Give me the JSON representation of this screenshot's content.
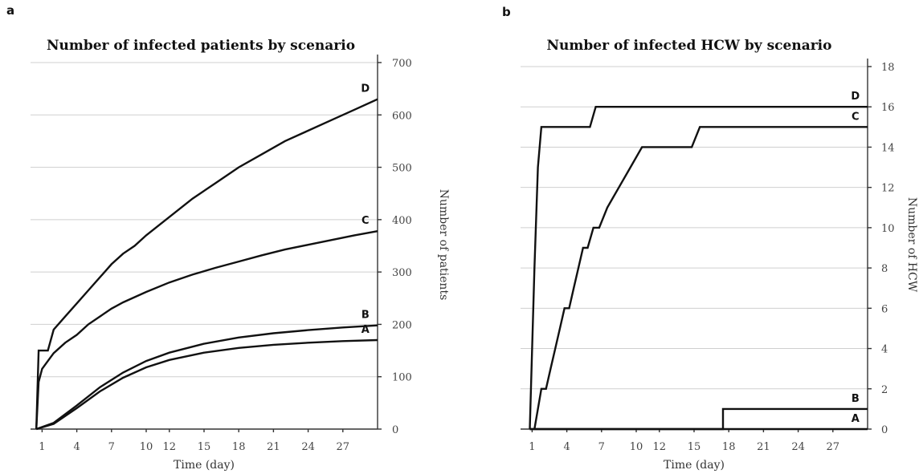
{
  "chart_data": [
    {
      "panel_label": "a",
      "type": "line",
      "title": "Number of infected patients by scenario",
      "xlabel": "Time (day)",
      "ylabel": "Number of patients",
      "xlim": [
        0,
        30
      ],
      "ylim": [
        0,
        700
      ],
      "x_ticks": [
        1,
        4,
        7,
        10,
        12,
        15,
        18,
        21,
        24,
        27
      ],
      "y_ticks": [
        0,
        100,
        200,
        300,
        400,
        500,
        600,
        700
      ],
      "grid": true,
      "series": [
        {
          "name": "A",
          "x": [
            0.5,
            2,
            4,
            6,
            8,
            10,
            12,
            15,
            18,
            21,
            24,
            27,
            30
          ],
          "y": [
            0,
            10,
            40,
            72,
            98,
            118,
            132,
            146,
            155,
            161,
            165,
            168,
            170
          ]
        },
        {
          "name": "B",
          "x": [
            0.5,
            2,
            4,
            6,
            8,
            10,
            12,
            15,
            18,
            21,
            24,
            27,
            30
          ],
          "y": [
            0,
            12,
            45,
            80,
            108,
            130,
            146,
            163,
            175,
            183,
            189,
            194,
            198
          ]
        },
        {
          "name": "C",
          "x": [
            0.5,
            0.7,
            1,
            1.5,
            2,
            3,
            4,
            5,
            6,
            7,
            8,
            9,
            10,
            12,
            14,
            16,
            18,
            20,
            22,
            24,
            26,
            28,
            30
          ],
          "y": [
            0,
            90,
            115,
            130,
            145,
            165,
            180,
            200,
            215,
            230,
            242,
            252,
            262,
            280,
            295,
            308,
            320,
            332,
            343,
            352,
            361,
            370,
            378
          ]
        },
        {
          "name": "D",
          "x": [
            0.5,
            0.7,
            1.5,
            2,
            3,
            4,
            5,
            6,
            7,
            8,
            9,
            10,
            12,
            14,
            16,
            18,
            20,
            22,
            24,
            26,
            28,
            30
          ],
          "y": [
            0,
            150,
            150,
            190,
            215,
            240,
            265,
            290,
            315,
            335,
            350,
            370,
            405,
            440,
            470,
            500,
            525,
            550,
            570,
            590,
            610,
            630
          ]
        }
      ]
    },
    {
      "panel_label": "b",
      "type": "line",
      "title": "Number of infected HCW by scenario",
      "xlabel": "Time (day)",
      "ylabel": "Number of HCW",
      "xlim": [
        0,
        30
      ],
      "ylim": [
        0,
        18
      ],
      "x_ticks": [
        1,
        4,
        7,
        10,
        12,
        15,
        18,
        21,
        24,
        27
      ],
      "y_ticks": [
        0,
        2,
        4,
        6,
        8,
        10,
        12,
        14,
        16,
        18
      ],
      "grid": true,
      "series": [
        {
          "name": "A",
          "x": [
            0.8,
            30
          ],
          "y": [
            0,
            0
          ]
        },
        {
          "name": "B",
          "x": [
            0.8,
            17.5,
            17.5,
            30
          ],
          "y": [
            0,
            0,
            1,
            1
          ]
        },
        {
          "name": "C",
          "x": [
            1.2,
            1.5,
            1.8,
            2.2,
            2.6,
            3.0,
            3.4,
            3.8,
            4.2,
            4.6,
            5.0,
            5.4,
            5.8,
            6.3,
            6.8,
            7.5,
            8.5,
            9.5,
            10.5,
            11.0,
            14.8,
            15.5,
            30
          ],
          "y": [
            0,
            1,
            2,
            2,
            3,
            4,
            5,
            6,
            6,
            7,
            8,
            9,
            9,
            10,
            10,
            11,
            12,
            13,
            14,
            14,
            14,
            15,
            15
          ]
        },
        {
          "name": "D",
          "x": [
            0.8,
            1.2,
            1.5,
            1.8,
            6.0,
            6.5,
            30
          ],
          "y": [
            0,
            8,
            13,
            15,
            15,
            16,
            16
          ]
        }
      ]
    }
  ]
}
